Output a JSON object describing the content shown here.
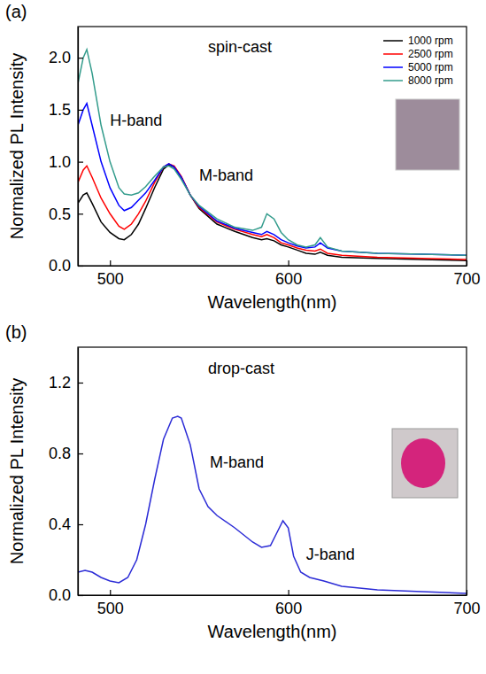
{
  "chart_data": [
    {
      "type": "line",
      "panel": "(a)",
      "xlabel": "Wavelength(nm)",
      "ylabel": "Normalized PL Intensity",
      "xlim": [
        482,
        700
      ],
      "xticks": [
        500,
        600,
        700
      ],
      "ylim": [
        0,
        2.3
      ],
      "yticks": [
        {
          "value": 0,
          "label": "0.0"
        },
        {
          "value": 0.5,
          "label": "0.5"
        },
        {
          "value": 1,
          "label": "1.0"
        },
        {
          "value": 1.5,
          "label": "1.5"
        },
        {
          "value": 2,
          "label": "2.0"
        }
      ],
      "legend": "upper right",
      "annotations": [
        {
          "text": "spin-cast",
          "x": 555,
          "y": 2.05
        },
        {
          "text": "H-band",
          "x": 500,
          "y": 1.35
        },
        {
          "text": "M-band",
          "x": 550,
          "y": 0.82
        }
      ],
      "x": [
        482,
        485,
        487,
        490,
        495,
        500,
        505,
        508,
        512,
        516,
        520,
        525,
        530,
        533,
        536,
        540,
        545,
        550,
        560,
        570,
        580,
        585,
        588,
        592,
        596,
        600,
        605,
        610,
        615,
        618,
        622,
        630,
        650,
        675,
        700
      ],
      "series": [
        {
          "name": "1000 rpm",
          "color": "#000000",
          "values": [
            0.6,
            0.68,
            0.7,
            0.6,
            0.42,
            0.32,
            0.26,
            0.25,
            0.3,
            0.4,
            0.55,
            0.75,
            0.93,
            0.97,
            0.95,
            0.85,
            0.68,
            0.55,
            0.4,
            0.33,
            0.27,
            0.25,
            0.26,
            0.24,
            0.2,
            0.18,
            0.15,
            0.12,
            0.11,
            0.13,
            0.1,
            0.08,
            0.07,
            0.06,
            0.05
          ]
        },
        {
          "name": "2500 rpm",
          "color": "#ff0000",
          "values": [
            0.8,
            0.92,
            0.96,
            0.85,
            0.65,
            0.5,
            0.38,
            0.35,
            0.4,
            0.5,
            0.62,
            0.8,
            0.95,
            0.98,
            0.96,
            0.86,
            0.68,
            0.56,
            0.42,
            0.35,
            0.3,
            0.28,
            0.3,
            0.27,
            0.22,
            0.2,
            0.17,
            0.15,
            0.14,
            0.16,
            0.12,
            0.1,
            0.08,
            0.07,
            0.06
          ]
        },
        {
          "name": "5000 rpm",
          "color": "#0000ff",
          "values": [
            1.35,
            1.5,
            1.56,
            1.35,
            1.0,
            0.75,
            0.58,
            0.53,
            0.56,
            0.63,
            0.7,
            0.82,
            0.95,
            0.98,
            0.95,
            0.85,
            0.68,
            0.57,
            0.43,
            0.36,
            0.32,
            0.3,
            0.33,
            0.3,
            0.25,
            0.22,
            0.19,
            0.17,
            0.18,
            0.22,
            0.17,
            0.14,
            0.12,
            0.11,
            0.1
          ]
        },
        {
          "name": "8000 rpm",
          "color": "#339c8c",
          "values": [
            1.75,
            2.0,
            2.08,
            1.85,
            1.35,
            1.0,
            0.75,
            0.69,
            0.68,
            0.7,
            0.76,
            0.86,
            0.95,
            0.96,
            0.93,
            0.83,
            0.68,
            0.58,
            0.45,
            0.37,
            0.34,
            0.37,
            0.5,
            0.45,
            0.32,
            0.25,
            0.2,
            0.18,
            0.2,
            0.27,
            0.18,
            0.14,
            0.12,
            0.11,
            0.1
          ]
        }
      ]
    },
    {
      "type": "line",
      "panel": "(b)",
      "xlabel": "Wavelength(nm)",
      "ylabel": "Normalized PL Intensity",
      "xlim": [
        482,
        700
      ],
      "xticks": [
        500,
        600,
        700
      ],
      "ylim": [
        0,
        1.4
      ],
      "yticks": [
        {
          "value": 0,
          "label": "0.0"
        },
        {
          "value": 0.4,
          "label": "0.4"
        },
        {
          "value": 0.8,
          "label": "0.8"
        },
        {
          "value": 1.2,
          "label": "1.2"
        }
      ],
      "annotations": [
        {
          "text": "drop-cast",
          "x": 555,
          "y": 1.25
        },
        {
          "text": "M-band",
          "x": 556,
          "y": 0.72
        },
        {
          "text": "J-band",
          "x": 610,
          "y": 0.2
        }
      ],
      "x": [
        482,
        486,
        490,
        495,
        500,
        505,
        510,
        515,
        520,
        525,
        530,
        535,
        538,
        540,
        545,
        550,
        555,
        560,
        570,
        580,
        585,
        590,
        594,
        597,
        600,
        603,
        607,
        612,
        620,
        630,
        650,
        675,
        700
      ],
      "series": [
        {
          "color": "#2b2bd6",
          "values": [
            0.13,
            0.14,
            0.13,
            0.1,
            0.08,
            0.07,
            0.1,
            0.2,
            0.4,
            0.65,
            0.88,
            1.0,
            1.01,
            1.0,
            0.85,
            0.6,
            0.5,
            0.45,
            0.38,
            0.3,
            0.27,
            0.28,
            0.36,
            0.42,
            0.38,
            0.22,
            0.13,
            0.1,
            0.08,
            0.05,
            0.03,
            0.02,
            0.01
          ]
        }
      ]
    }
  ]
}
